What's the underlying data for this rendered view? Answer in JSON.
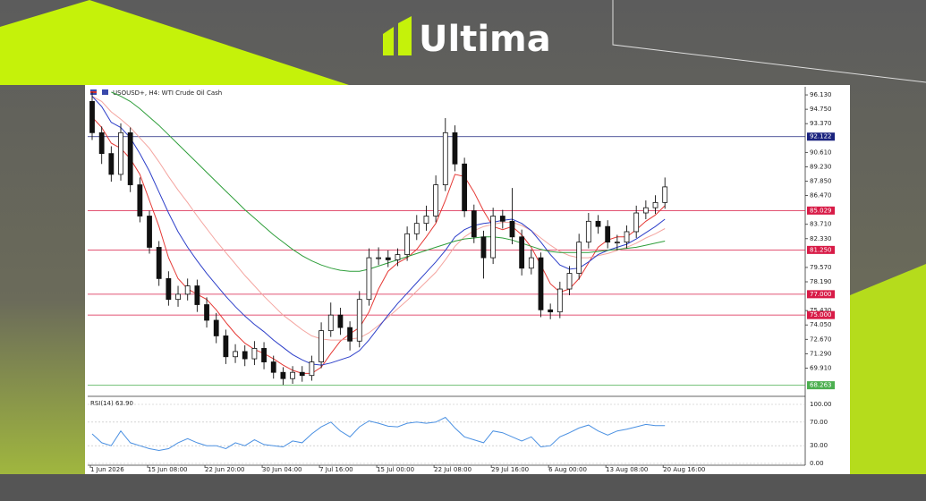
{
  "brand": "Ultima",
  "chart_data": [
    {
      "type": "candlestick",
      "title": "USOUSD+, H4:  WTI Crude Oil Cash",
      "categories": [
        "1 Jun 2026",
        null,
        null,
        null,
        null,
        null,
        "15 Jun 08:00",
        null,
        null,
        null,
        null,
        null,
        "22 Jun 20:00",
        null,
        null,
        null,
        null,
        null,
        "30 Jun 04:00",
        null,
        null,
        null,
        null,
        null,
        "7 Jul 16:00",
        null,
        null,
        null,
        null,
        null,
        "15 Jul 00:00",
        null,
        null,
        null,
        null,
        null,
        "22 Jul 08:00",
        null,
        null,
        null,
        null,
        null,
        "29 Jul 16:00",
        null,
        null,
        null,
        null,
        null,
        "6 Aug 00:00",
        null,
        null,
        null,
        null,
        null,
        "13 Aug 08:00",
        null,
        null,
        null,
        null,
        null,
        "20 Aug 16:00"
      ],
      "open": [
        95.5,
        92.5,
        90.5,
        88.5,
        92.5,
        87.5,
        84.5,
        81.5,
        78.5,
        76.5,
        77,
        77.8,
        76,
        74.5,
        73,
        71,
        71.5,
        70.8,
        71.8,
        70.5,
        69.5,
        68.9,
        69.5,
        69.2,
        70.5,
        73.5,
        75,
        73.8,
        72.5,
        76.5,
        80.5,
        80.5,
        80.3,
        80.8,
        82.8,
        83.8,
        84.5,
        87.5,
        92.5,
        89.5,
        85,
        82.5,
        80.5,
        84.5,
        84,
        82.5,
        79.5,
        80.5,
        75.5,
        75.3,
        77.5,
        79,
        82,
        84,
        83.5,
        82,
        82,
        83,
        84.8,
        85.3,
        85.8
      ],
      "high": [
        96.4,
        93.1,
        91.2,
        93.4,
        93,
        88.2,
        85,
        82.1,
        79.2,
        77.8,
        78.5,
        78.4,
        76.7,
        75.2,
        73.6,
        72.2,
        72.1,
        72.5,
        72.4,
        71.1,
        70,
        70.1,
        70.1,
        71.1,
        74.3,
        76.2,
        75.7,
        74.4,
        77.3,
        81.4,
        81.5,
        81.2,
        81.4,
        83.5,
        84.6,
        85.5,
        88.4,
        93.9,
        93.2,
        90.1,
        85.6,
        83.1,
        85.3,
        85.1,
        87.2,
        83.2,
        81.3,
        81,
        76.1,
        78.2,
        79.7,
        82.8,
        84.8,
        84.6,
        84.1,
        82.7,
        83.6,
        85.5,
        86,
        86.5,
        88.2
      ],
      "low": [
        91.8,
        89.5,
        87.8,
        87.9,
        86.8,
        83.9,
        80.9,
        77.8,
        75.9,
        75.8,
        76.4,
        75.3,
        73.8,
        72.3,
        70.3,
        70.4,
        70.1,
        70.2,
        69.8,
        68.9,
        68.3,
        68.4,
        68.6,
        68.7,
        69.9,
        72.9,
        73.1,
        71.6,
        71.9,
        75.9,
        79.8,
        79.6,
        79.7,
        80.2,
        82.2,
        83.1,
        83.9,
        86.9,
        88.8,
        84.4,
        81.9,
        78.5,
        79.9,
        83.3,
        81.8,
        78.8,
        78.9,
        74.8,
        74.6,
        74.7,
        76.9,
        78.4,
        81.4,
        82.8,
        81.4,
        81.2,
        81.4,
        82.4,
        84.2,
        84.7,
        85.2
      ],
      "close": [
        92.5,
        90.5,
        88.5,
        92.5,
        87.5,
        84.5,
        81.5,
        78.5,
        76.5,
        77,
        77.8,
        76,
        74.5,
        73,
        71,
        71.5,
        70.8,
        71.8,
        70.5,
        69.5,
        68.9,
        69.5,
        69.2,
        70.5,
        73.5,
        75,
        73.8,
        72.5,
        76.5,
        80.5,
        80.5,
        80.3,
        80.8,
        82.8,
        83.8,
        84.5,
        87.5,
        92.5,
        89.5,
        85,
        82.5,
        80.5,
        84.5,
        84,
        82.5,
        79.5,
        80.5,
        75.5,
        75.3,
        77.5,
        79,
        82,
        84,
        83.5,
        82,
        82,
        83,
        84.8,
        85.3,
        85.8,
        87.3
      ],
      "series": [
        {
          "color": "#e53935",
          "values": [
            94,
            93,
            91.5,
            91,
            90,
            88.5,
            86,
            83.5,
            80.5,
            78.5,
            77.5,
            77,
            76.5,
            75.5,
            74.3,
            73.2,
            72.3,
            71.7,
            71.3,
            70.8,
            70.2,
            69.7,
            69.4,
            69.4,
            70,
            71.3,
            72.5,
            73.2,
            73.8,
            75.3,
            77.5,
            79.2,
            80,
            80.5,
            81.3,
            82.5,
            83.8,
            86,
            88.5,
            88.3,
            86.8,
            85,
            83.5,
            83.2,
            83.5,
            82.7,
            81.5,
            79.8,
            78,
            77.2,
            77.5,
            78.5,
            80,
            81.5,
            82.2,
            82.5,
            82.5,
            83.2,
            84,
            84.6,
            85.5
          ]
        },
        {
          "color": "#f4a5a0",
          "values": [
            96,
            95.5,
            94.5,
            93.8,
            93,
            92,
            91,
            89.7,
            88.3,
            87,
            85.8,
            84.5,
            83.3,
            82.1,
            81,
            79.9,
            78.8,
            77.8,
            76.8,
            75.9,
            75,
            74.3,
            73.6,
            73,
            72.7,
            72.6,
            72.6,
            72.7,
            72.8,
            73.3,
            74,
            74.8,
            75.6,
            76.4,
            77.3,
            78.2,
            79.1,
            80.3,
            81.6,
            82.5,
            83.1,
            83.5,
            83.7,
            83.9,
            83.9,
            83.6,
            83.1,
            82.4,
            81.7,
            81.1,
            80.7,
            80.5,
            80.5,
            80.7,
            80.9,
            81.2,
            81.5,
            81.9,
            82.4,
            82.8,
            83.3
          ]
        },
        {
          "color": "#2d3fc9",
          "values": [
            96,
            95,
            93.5,
            93,
            92,
            90.5,
            88.8,
            86.8,
            84.8,
            83,
            81.5,
            80.2,
            79,
            77.9,
            76.8,
            75.8,
            74.9,
            74.1,
            73.4,
            72.6,
            71.9,
            71.2,
            70.7,
            70.3,
            70.2,
            70.4,
            70.7,
            71,
            71.6,
            72.6,
            73.8,
            75,
            76.1,
            77.1,
            78.1,
            79.1,
            80.1,
            81.2,
            82.5,
            83.2,
            83.6,
            83.8,
            83.9,
            84.1,
            84.2,
            83.8,
            83.1,
            82,
            80.8,
            79.8,
            79.4,
            79.5,
            80.1,
            80.8,
            81.2,
            81.5,
            81.8,
            82.3,
            82.9,
            83.5,
            84.2
          ]
        },
        {
          "color": "#2e9e3a",
          "values": [
            null,
            null,
            96.4,
            96,
            95.5,
            94.8,
            94,
            93.2,
            92.3,
            91.4,
            90.5,
            89.6,
            88.7,
            87.8,
            86.9,
            86,
            85.1,
            84.3,
            83.5,
            82.7,
            82,
            81.3,
            80.7,
            80.2,
            79.8,
            79.5,
            79.3,
            79.2,
            79.2,
            79.4,
            79.7,
            80,
            80.3,
            80.6,
            80.9,
            81.2,
            81.5,
            81.8,
            82.1,
            82.3,
            82.4,
            82.5,
            82.5,
            82.4,
            82.2,
            81.9,
            81.6,
            81.3,
            81.1,
            81,
            81,
            81,
            81,
            81.1,
            81.2,
            81.3,
            81.4,
            81.5,
            81.7,
            81.9,
            82.1
          ]
        }
      ],
      "levels": [
        {
          "value": 92.122,
          "label": "92.122",
          "color": "#1a237e"
        },
        {
          "value": 85.029,
          "label": "85.029",
          "color": "#d81b47"
        },
        {
          "value": 81.25,
          "label": "81.250",
          "color": "#d81b47"
        },
        {
          "value": 77,
          "label": "77.000",
          "color": "#d81b47"
        },
        {
          "value": 75,
          "label": "75.000",
          "color": "#d81b47"
        },
        {
          "value": 68.263,
          "label": "68.263",
          "color": "#4caf50"
        }
      ],
      "ylim": [
        67.2,
        96.65
      ],
      "yticks": [
        {
          "value": 96.13,
          "label": "96.130"
        },
        {
          "value": 94.75,
          "label": "94.750"
        },
        {
          "value": 93.37,
          "label": "93.370"
        },
        {
          "value": 90.61,
          "label": "90.610"
        },
        {
          "value": 89.23,
          "label": "89.230"
        },
        {
          "value": 87.85,
          "label": "87.850"
        },
        {
          "value": 86.47,
          "label": "86.470"
        },
        {
          "value": 83.71,
          "label": "83.710"
        },
        {
          "value": 82.33,
          "label": "82.330"
        },
        {
          "value": 79.57,
          "label": "79.570"
        },
        {
          "value": 78.19,
          "label": "78.190"
        },
        {
          "value": 75.43,
          "label": "75.430"
        },
        {
          "value": 74.05,
          "label": "74.050"
        },
        {
          "value": 72.67,
          "label": "72.670"
        },
        {
          "value": 71.29,
          "label": "71.290"
        },
        {
          "value": 69.91,
          "label": "69.910"
        }
      ]
    },
    {
      "type": "line",
      "title": "RSI(14) 63.90",
      "color": "#4a90e2",
      "values": [
        50,
        35,
        30,
        55,
        35,
        30,
        25,
        22,
        25,
        35,
        42,
        35,
        30,
        30,
        25,
        35,
        30,
        40,
        32,
        30,
        28,
        38,
        35,
        50,
        62,
        70,
        55,
        45,
        62,
        72,
        68,
        63,
        62,
        68,
        70,
        68,
        70,
        78,
        60,
        45,
        40,
        35,
        55,
        52,
        45,
        38,
        45,
        28,
        30,
        45,
        52,
        60,
        65,
        55,
        48,
        55,
        58,
        62,
        66,
        64,
        63.9
      ],
      "ylim": [
        0,
        100
      ],
      "yticks": [
        {
          "value": 100,
          "label": "100.00"
        },
        {
          "value": 70,
          "label": "70.00"
        },
        {
          "value": 30,
          "label": "30.00"
        },
        {
          "value": 0,
          "label": "0.00"
        }
      ]
    }
  ]
}
